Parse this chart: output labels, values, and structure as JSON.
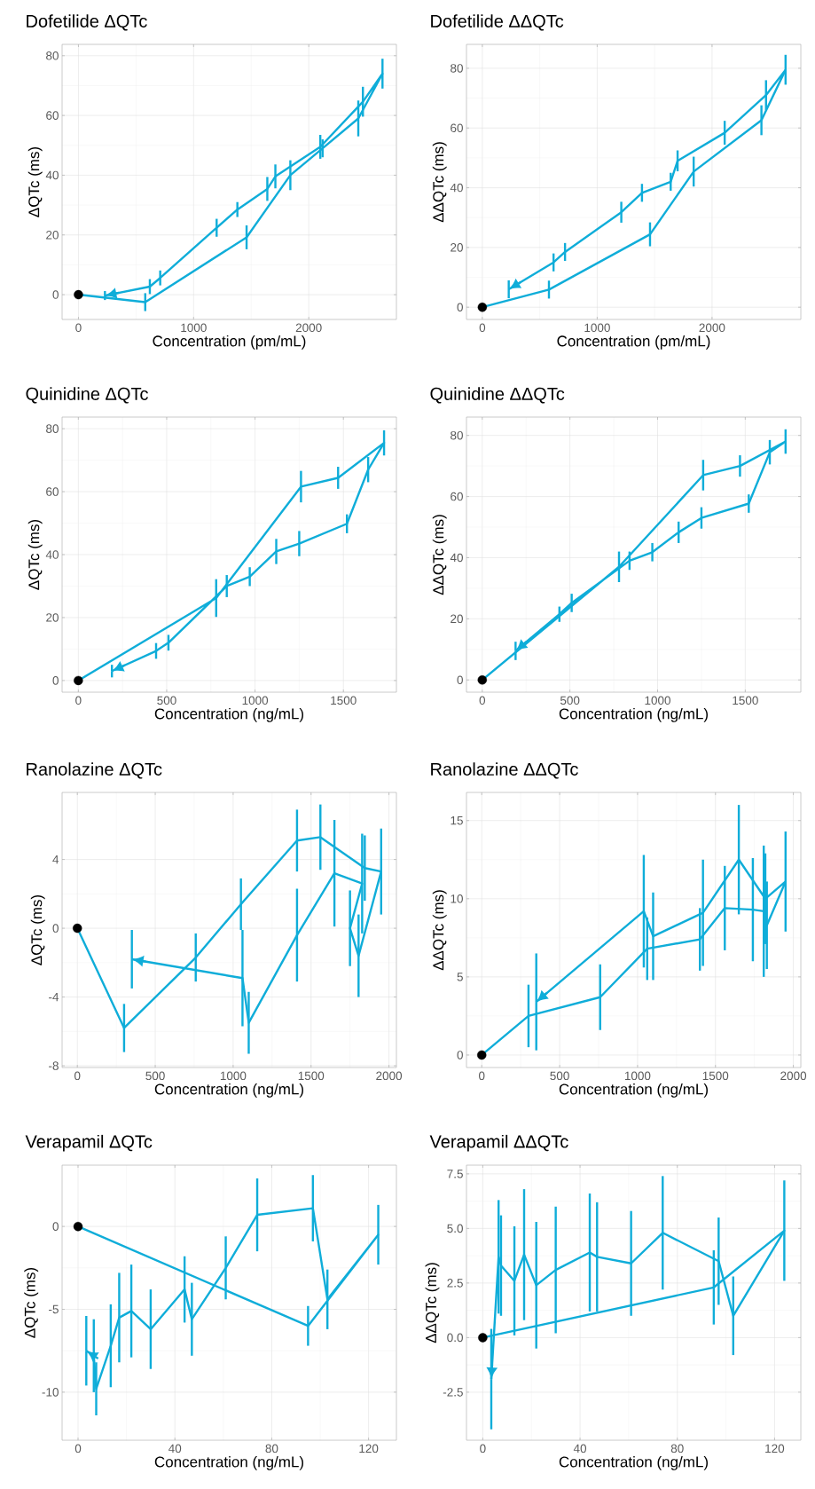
{
  "chart_data": [
    {
      "type": "line",
      "title": "Dofetilide ΔQTc",
      "xlabel": "Concentration (pm/mL)",
      "ylabel": "ΔQTc (ms)",
      "xlim": [
        -142,
        2761
      ],
      "ylim": [
        -8.3,
        83.8
      ],
      "xticks": [
        0,
        1000,
        2000
      ],
      "yticks": [
        0,
        20,
        40,
        60,
        80
      ],
      "grid": true,
      "series": [
        {
          "color": "#0fadd9",
          "x": [
            0,
            580,
            1460,
            1840,
            2120,
            2430,
            2640,
            2470,
            2100,
            1710,
            1640,
            1380,
            1200,
            710,
            620,
            230
          ],
          "values": [
            0,
            -2.5,
            19.2,
            40,
            49,
            59,
            74,
            64.6,
            49.5,
            39.6,
            35.4,
            28.5,
            22.4,
            5.6,
            2.7,
            -0.3
          ],
          "errors": [
            null,
            3,
            4,
            5,
            3,
            6,
            5,
            5,
            4,
            4,
            4,
            2.5,
            3,
            2.5,
            2.5,
            1.5
          ]
        },
        {
          "type": "scatter",
          "color": "#000000",
          "x": [
            0
          ],
          "values": [
            0
          ]
        }
      ]
    },
    {
      "type": "line",
      "title": "Dofetilide ΔΔQTc",
      "xlabel": "Concentration (pm/mL)",
      "ylabel": "ΔΔQTc (ms)",
      "xlim": [
        -138,
        2773
      ],
      "ylim": [
        -4.1,
        88
      ],
      "xticks": [
        0,
        1000,
        2000
      ],
      "yticks": [
        0,
        20,
        40,
        60,
        80
      ],
      "grid": true,
      "series": [
        {
          "color": "#0fadd9",
          "x": [
            0,
            580,
            1460,
            1840,
            2430,
            2640,
            2470,
            2110,
            1700,
            1640,
            1390,
            1210,
            720,
            620,
            230
          ],
          "values": [
            0,
            5.9,
            24.4,
            45.4,
            62.6,
            79.5,
            71,
            58.4,
            49,
            42,
            38.3,
            31.8,
            18.5,
            15,
            6
          ],
          "errors": [
            null,
            3,
            4,
            5,
            5,
            5,
            5,
            4,
            3.5,
            3,
            3,
            3.5,
            3,
            3,
            3
          ]
        },
        {
          "type": "scatter",
          "color": "#000000",
          "x": [
            0
          ],
          "values": [
            0
          ]
        }
      ]
    },
    {
      "type": "line",
      "title": "Quinidine ΔQTc",
      "xlabel": "Concentration (ng/mL)",
      "ylabel": "ΔQTc (ms)",
      "xlim": [
        -92,
        1800
      ],
      "ylim": [
        -3.7,
        83.7
      ],
      "xticks": [
        0,
        500,
        1000,
        1500
      ],
      "yticks": [
        0,
        20,
        40,
        60,
        80
      ],
      "grid": true,
      "series": [
        {
          "color": "#0fadd9",
          "x": [
            0,
            780,
            1260,
            1470,
            1730,
            1640,
            1520,
            1250,
            1120,
            970,
            840,
            510,
            440,
            190
          ],
          "values": [
            0,
            26.2,
            61.6,
            64.4,
            75.5,
            67,
            49.8,
            43.5,
            41,
            33,
            30,
            12,
            9.4,
            3
          ],
          "errors": [
            null,
            6,
            5,
            3.5,
            4,
            4,
            3,
            4,
            4,
            3,
            3.5,
            2.5,
            2.5,
            2
          ]
        },
        {
          "type": "scatter",
          "color": "#000000",
          "x": [
            0
          ],
          "values": [
            0
          ]
        }
      ]
    },
    {
      "type": "line",
      "title": "Quinidine ΔΔQTc",
      "xlabel": "Concentration (ng/mL)",
      "ylabel": "ΔΔQTc (ms)",
      "xlim": [
        -90,
        1817
      ],
      "ylim": [
        -4,
        86
      ],
      "xticks": [
        0,
        500,
        1000,
        1500
      ],
      "yticks": [
        0,
        20,
        40,
        60,
        80
      ],
      "grid": true,
      "series": [
        {
          "color": "#0fadd9",
          "x": [
            0,
            780,
            1260,
            1470,
            1730,
            1640,
            1520,
            1250,
            1120,
            970,
            840,
            510,
            440,
            190
          ],
          "values": [
            0,
            37,
            67,
            70,
            78,
            74.5,
            57.7,
            53,
            48.3,
            41.8,
            39,
            25.2,
            21.5,
            9.5
          ],
          "errors": [
            null,
            5,
            5,
            3.5,
            4,
            4,
            3,
            3.5,
            3.5,
            3,
            3,
            3,
            2.5,
            3
          ]
        },
        {
          "type": "scatter",
          "color": "#000000",
          "x": [
            0
          ],
          "values": [
            0
          ]
        }
      ]
    },
    {
      "type": "line",
      "title": "Ranolazine ΔQTc",
      "xlabel": "Concentration (ng/mL)",
      "ylabel": "ΔQTc (ms)",
      "xlim": [
        -98,
        2048
      ],
      "ylim": [
        -8.1,
        7.9
      ],
      "xticks": [
        0,
        500,
        1000,
        1500,
        2000
      ],
      "yticks": [
        -8,
        -4,
        0,
        4
      ],
      "grid": true,
      "series": [
        {
          "color": "#0fadd9",
          "x": [
            0,
            300,
            760,
            1050,
            1410,
            1560,
            1845,
            1950,
            1805,
            1750,
            1828,
            1650,
            1410,
            1100,
            1060,
            350
          ],
          "values": [
            0,
            -5.8,
            -1.7,
            1.4,
            5.1,
            5.3,
            3.5,
            3.3,
            -1.6,
            0,
            2.6,
            3.2,
            -0.4,
            -5.5,
            -2.9,
            -1.8
          ],
          "errors": [
            null,
            1.4,
            1.4,
            1.5,
            1.8,
            1.9,
            1.9,
            2.5,
            2.4,
            2.2,
            2.9,
            3.1,
            2.7,
            1.8,
            2.8,
            1.7
          ]
        },
        {
          "type": "scatter",
          "color": "#000000",
          "x": [
            0
          ],
          "values": [
            0
          ]
        }
      ]
    },
    {
      "type": "line",
      "title": "Ranolazine ΔΔQTc",
      "xlabel": "Concentration (ng/mL)",
      "ylabel": "ΔΔQTc (ms)",
      "xlim": [
        -98,
        2048
      ],
      "ylim": [
        -0.8,
        16.8
      ],
      "xticks": [
        0,
        500,
        1000,
        1500,
        2000
      ],
      "yticks": [
        0,
        5,
        10,
        15
      ],
      "grid": true,
      "series": [
        {
          "color": "#0fadd9",
          "x": [
            0,
            300,
            760,
            1062,
            1400,
            1560,
            1740,
            1810,
            1830,
            1950,
            1820,
            1650,
            1420,
            1100,
            1040,
            350
          ],
          "values": [
            0,
            2.5,
            3.7,
            6.8,
            7.4,
            9.4,
            9.3,
            9.2,
            8.3,
            11.1,
            10,
            12.5,
            9.1,
            7.6,
            9.2,
            3.4
          ],
          "errors": [
            null,
            2,
            2.1,
            2,
            2,
            2.7,
            3.3,
            4.2,
            2.8,
            3.2,
            2.9,
            3.5,
            3.4,
            2.8,
            3.6,
            3.1
          ]
        },
        {
          "type": "scatter",
          "color": "#000000",
          "x": [
            0
          ],
          "values": [
            0
          ]
        }
      ]
    },
    {
      "type": "line",
      "title": "Verapamil ΔQTc",
      "xlabel": "Concentration (ng/mL)",
      "ylabel": "ΔQTc (ms)",
      "xlim": [
        -6.6,
        131.5
      ],
      "ylim": [
        -12.9,
        3.7
      ],
      "xticks": [
        0,
        40,
        80,
        120
      ],
      "yticks": [
        -10,
        -5,
        0
      ],
      "grid": true,
      "series": [
        {
          "color": "#0fadd9",
          "x": [
            0,
            95,
            124,
            103,
            97,
            74,
            61,
            47,
            44,
            30,
            22,
            17,
            13.5,
            7.5,
            6.5,
            3.4
          ],
          "values": [
            0,
            -6,
            -0.5,
            -4.4,
            1.1,
            0.7,
            -2.5,
            -5.6,
            -3.8,
            -6.2,
            -5.1,
            -5.5,
            -7.2,
            -9.8,
            -7.8,
            -7.5
          ],
          "errors": [
            null,
            1.2,
            1.8,
            1.8,
            2,
            2.2,
            1.9,
            2.2,
            2,
            2.4,
            2.8,
            2.7,
            2.5,
            1.6,
            2.2,
            2.1
          ]
        },
        {
          "type": "scatter",
          "color": "#000000",
          "x": [
            0
          ],
          "values": [
            0
          ]
        }
      ]
    },
    {
      "type": "line",
      "title": "Verapamil ΔΔQTc",
      "xlabel": "Concentration (ng/mL)",
      "ylabel": "ΔΔQTc (ms)",
      "xlim": [
        -6.7,
        130.8
      ],
      "ylim": [
        -4.7,
        7.9
      ],
      "xticks": [
        0,
        40,
        80,
        120
      ],
      "yticks": [
        {
          "value": -2.5,
          "label": "-2.5"
        },
        {
          "value": 0,
          "label": "0.0"
        },
        {
          "value": 2.5,
          "label": "2.5"
        },
        {
          "value": 5,
          "label": "5.0"
        },
        {
          "value": 7.5,
          "label": "7.5"
        }
      ],
      "grid": true,
      "series": [
        {
          "color": "#0fadd9",
          "x": [
            0,
            95,
            124,
            103,
            97,
            74,
            61,
            47,
            44,
            30,
            22,
            17,
            13,
            7.5,
            6.5,
            3.5
          ],
          "values": [
            0,
            2.3,
            4.9,
            1,
            3.5,
            4.8,
            3.4,
            3.7,
            3.9,
            3.1,
            2.4,
            3.8,
            2.6,
            3.3,
            3.7,
            -1.9
          ],
          "errors": [
            null,
            1.7,
            2.3,
            1.8,
            2,
            2.6,
            2.4,
            2.5,
            2.7,
            2.9,
            2.9,
            3,
            2.5,
            2.3,
            2.6,
            2.3
          ]
        },
        {
          "type": "scatter",
          "color": "#000000",
          "x": [
            0
          ],
          "values": [
            0
          ]
        }
      ]
    }
  ]
}
